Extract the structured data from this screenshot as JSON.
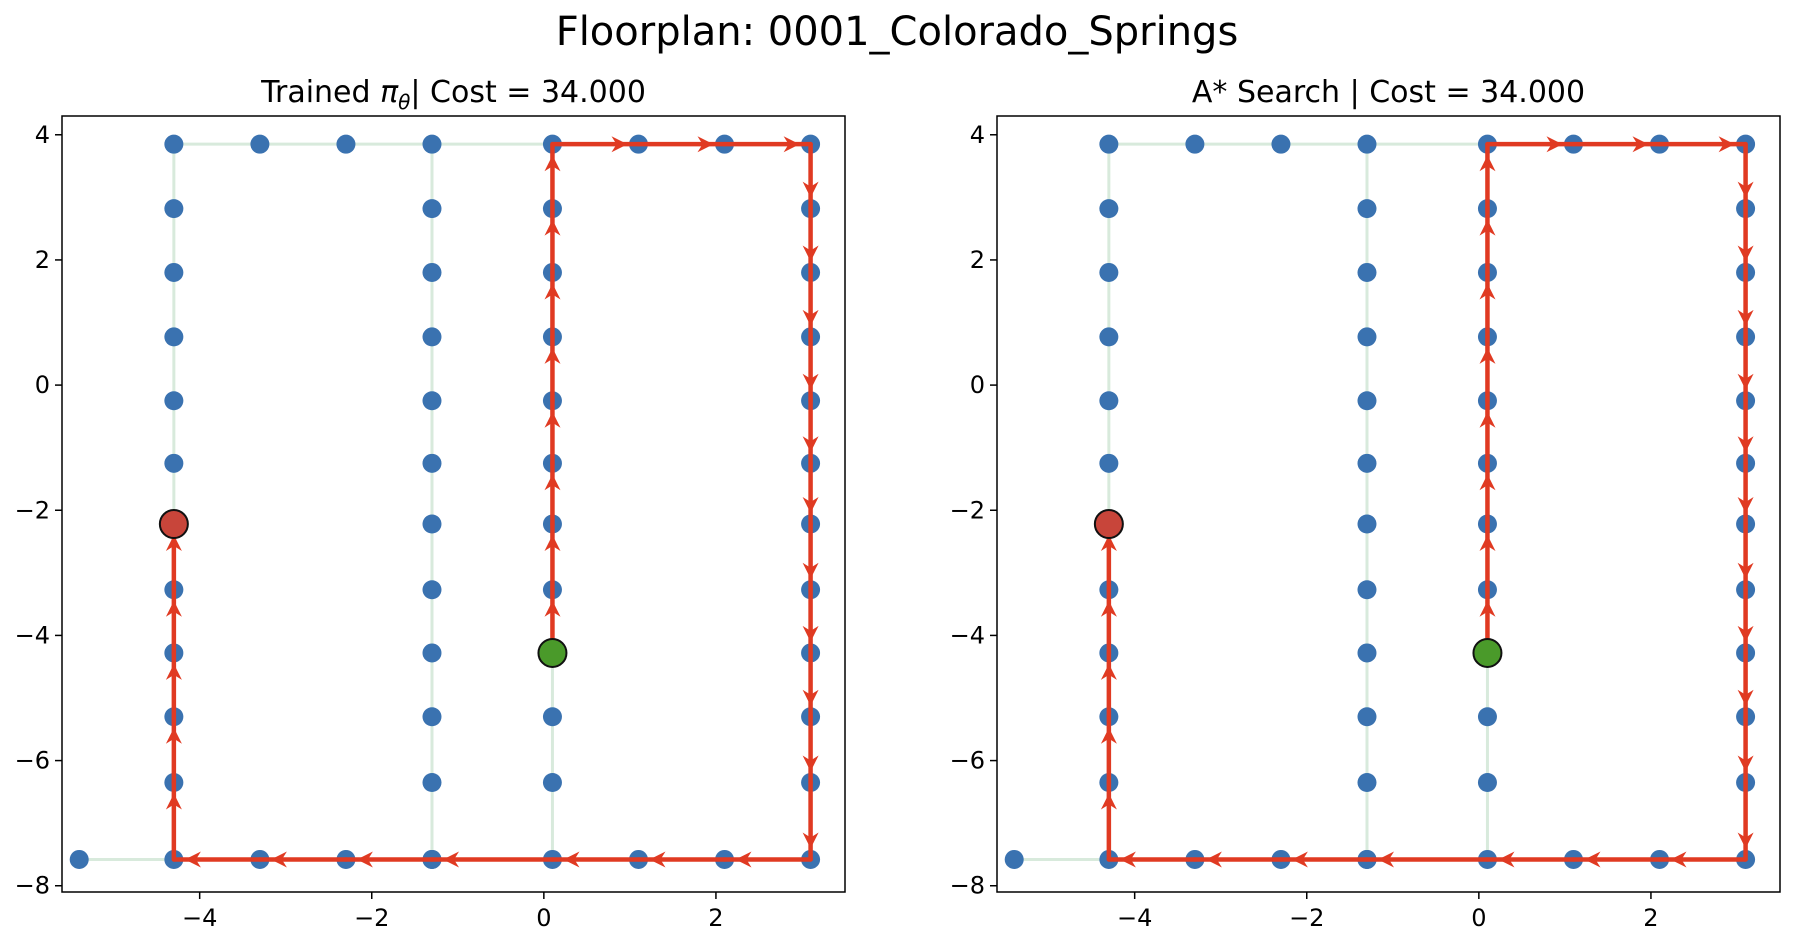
{
  "suptitle": "Floorplan: 0001_Colorado_Springs",
  "colors": {
    "node": "#3a72b0",
    "edge": "#d8eadc",
    "path": "#e03a22",
    "start": "#4a9a2a",
    "goal": "#c8453a"
  },
  "chart_data": [
    {
      "type": "scatter",
      "title_prefix": "Trained ",
      "title_symbol": "π",
      "title_subscript": "θ",
      "title_suffix": "| Cost = 34.000",
      "xlim": [
        -5.6,
        3.5
      ],
      "ylim": [
        -8.1,
        4.3
      ],
      "xticks": [
        -4,
        -2,
        0,
        2
      ],
      "xtick_labels": [
        "−4",
        "−2",
        "0",
        "2"
      ],
      "yticks": [
        4,
        2,
        0,
        -2,
        -4,
        -6,
        -8
      ],
      "ytick_labels": [
        "4",
        "2",
        "0",
        "−2",
        "−4",
        "−6",
        "−8"
      ],
      "grid": false,
      "nodes": [
        [
          -4.3,
          3.85
        ],
        [
          -3.3,
          3.85
        ],
        [
          -2.3,
          3.85
        ],
        [
          -1.3,
          3.85
        ],
        [
          0.1,
          3.85
        ],
        [
          1.1,
          3.85
        ],
        [
          2.1,
          3.85
        ],
        [
          3.1,
          3.85
        ],
        [
          -4.3,
          2.82
        ],
        [
          -4.3,
          1.8
        ],
        [
          -4.3,
          0.77
        ],
        [
          -4.3,
          -0.25
        ],
        [
          -4.3,
          -1.25
        ],
        [
          -4.3,
          -2.22
        ],
        [
          -4.3,
          -3.27
        ],
        [
          -4.3,
          -4.28
        ],
        [
          -4.3,
          -5.3
        ],
        [
          -4.3,
          -6.35
        ],
        [
          -4.3,
          -7.58
        ],
        [
          -1.3,
          2.82
        ],
        [
          -1.3,
          1.8
        ],
        [
          -1.3,
          0.77
        ],
        [
          -1.3,
          -0.25
        ],
        [
          -1.3,
          -1.25
        ],
        [
          -1.3,
          -2.22
        ],
        [
          -1.3,
          -3.27
        ],
        [
          -1.3,
          -4.28
        ],
        [
          -1.3,
          -5.3
        ],
        [
          -1.3,
          -6.35
        ],
        [
          -1.3,
          -7.58
        ],
        [
          0.1,
          2.82
        ],
        [
          0.1,
          1.8
        ],
        [
          0.1,
          0.77
        ],
        [
          0.1,
          -0.25
        ],
        [
          0.1,
          -1.25
        ],
        [
          0.1,
          -2.22
        ],
        [
          0.1,
          -3.27
        ],
        [
          0.1,
          -4.28
        ],
        [
          0.1,
          -5.3
        ],
        [
          0.1,
          -6.35
        ],
        [
          0.1,
          -7.58
        ],
        [
          3.1,
          2.82
        ],
        [
          3.1,
          1.8
        ],
        [
          3.1,
          0.77
        ],
        [
          3.1,
          -0.25
        ],
        [
          3.1,
          -1.25
        ],
        [
          3.1,
          -2.22
        ],
        [
          3.1,
          -3.27
        ],
        [
          3.1,
          -4.28
        ],
        [
          3.1,
          -5.3
        ],
        [
          3.1,
          -6.35
        ],
        [
          3.1,
          -7.58
        ],
        [
          -5.4,
          -7.58
        ],
        [
          -3.3,
          -7.58
        ],
        [
          -2.3,
          -7.58
        ],
        [
          -1.3,
          -7.58
        ],
        [
          1.1,
          -7.58
        ],
        [
          2.1,
          -7.58
        ]
      ],
      "edges": [
        [
          [
            -4.3,
            3.85
          ],
          [
            3.1,
            3.85
          ]
        ],
        [
          [
            -4.3,
            3.85
          ],
          [
            -4.3,
            -7.58
          ]
        ],
        [
          [
            -1.3,
            3.85
          ],
          [
            -1.3,
            -7.58
          ]
        ],
        [
          [
            0.1,
            3.85
          ],
          [
            0.1,
            -7.58
          ]
        ],
        [
          [
            3.1,
            3.85
          ],
          [
            3.1,
            -7.58
          ]
        ],
        [
          [
            -5.4,
            -7.58
          ],
          [
            3.1,
            -7.58
          ]
        ]
      ],
      "path": [
        [
          0.1,
          -4.28
        ],
        [
          0.1,
          -3.27
        ],
        [
          0.1,
          -2.22
        ],
        [
          0.1,
          -1.25
        ],
        [
          0.1,
          -0.25
        ],
        [
          0.1,
          0.77
        ],
        [
          0.1,
          1.8
        ],
        [
          0.1,
          2.82
        ],
        [
          0.1,
          3.85
        ],
        [
          1.1,
          3.85
        ],
        [
          2.1,
          3.85
        ],
        [
          3.1,
          3.85
        ],
        [
          3.1,
          2.82
        ],
        [
          3.1,
          1.8
        ],
        [
          3.1,
          0.77
        ],
        [
          3.1,
          -0.25
        ],
        [
          3.1,
          -1.25
        ],
        [
          3.1,
          -2.22
        ],
        [
          3.1,
          -3.27
        ],
        [
          3.1,
          -4.28
        ],
        [
          3.1,
          -5.3
        ],
        [
          3.1,
          -6.35
        ],
        [
          3.1,
          -7.58
        ],
        [
          2.1,
          -7.58
        ],
        [
          1.1,
          -7.58
        ],
        [
          0.1,
          -7.58
        ],
        [
          -1.3,
          -7.58
        ],
        [
          -2.3,
          -7.58
        ],
        [
          -3.3,
          -7.58
        ],
        [
          -4.3,
          -7.58
        ],
        [
          -4.3,
          -6.35
        ],
        [
          -4.3,
          -5.3
        ],
        [
          -4.3,
          -4.28
        ],
        [
          -4.3,
          -3.27
        ],
        [
          -4.3,
          -2.22
        ]
      ],
      "start": [
        0.1,
        -4.28
      ],
      "goal": [
        -4.3,
        -2.22
      ]
    },
    {
      "type": "scatter",
      "title_prefix": "A* Search | Cost = 34.000",
      "title_symbol": "",
      "title_subscript": "",
      "title_suffix": "",
      "xlim": [
        -5.6,
        3.5
      ],
      "ylim": [
        -8.1,
        4.3
      ],
      "xticks": [
        -4,
        -2,
        0,
        2
      ],
      "xtick_labels": [
        "−4",
        "−2",
        "0",
        "2"
      ],
      "yticks": [
        4,
        2,
        0,
        -2,
        -4,
        -6,
        -8
      ],
      "ytick_labels": [
        "4",
        "2",
        "0",
        "−2",
        "−4",
        "−6",
        "−8"
      ],
      "grid": false,
      "nodes": [
        [
          -4.3,
          3.85
        ],
        [
          -3.3,
          3.85
        ],
        [
          -2.3,
          3.85
        ],
        [
          -1.3,
          3.85
        ],
        [
          0.1,
          3.85
        ],
        [
          1.1,
          3.85
        ],
        [
          2.1,
          3.85
        ],
        [
          3.1,
          3.85
        ],
        [
          -4.3,
          2.82
        ],
        [
          -4.3,
          1.8
        ],
        [
          -4.3,
          0.77
        ],
        [
          -4.3,
          -0.25
        ],
        [
          -4.3,
          -1.25
        ],
        [
          -4.3,
          -2.22
        ],
        [
          -4.3,
          -3.27
        ],
        [
          -4.3,
          -4.28
        ],
        [
          -4.3,
          -5.3
        ],
        [
          -4.3,
          -6.35
        ],
        [
          -4.3,
          -7.58
        ],
        [
          -1.3,
          2.82
        ],
        [
          -1.3,
          1.8
        ],
        [
          -1.3,
          0.77
        ],
        [
          -1.3,
          -0.25
        ],
        [
          -1.3,
          -1.25
        ],
        [
          -1.3,
          -2.22
        ],
        [
          -1.3,
          -3.27
        ],
        [
          -1.3,
          -4.28
        ],
        [
          -1.3,
          -5.3
        ],
        [
          -1.3,
          -6.35
        ],
        [
          -1.3,
          -7.58
        ],
        [
          0.1,
          2.82
        ],
        [
          0.1,
          1.8
        ],
        [
          0.1,
          0.77
        ],
        [
          0.1,
          -0.25
        ],
        [
          0.1,
          -1.25
        ],
        [
          0.1,
          -2.22
        ],
        [
          0.1,
          -3.27
        ],
        [
          0.1,
          -4.28
        ],
        [
          0.1,
          -5.3
        ],
        [
          0.1,
          -6.35
        ],
        [
          0.1,
          -7.58
        ],
        [
          3.1,
          2.82
        ],
        [
          3.1,
          1.8
        ],
        [
          3.1,
          0.77
        ],
        [
          3.1,
          -0.25
        ],
        [
          3.1,
          -1.25
        ],
        [
          3.1,
          -2.22
        ],
        [
          3.1,
          -3.27
        ],
        [
          3.1,
          -4.28
        ],
        [
          3.1,
          -5.3
        ],
        [
          3.1,
          -6.35
        ],
        [
          3.1,
          -7.58
        ],
        [
          -5.4,
          -7.58
        ],
        [
          -3.3,
          -7.58
        ],
        [
          -2.3,
          -7.58
        ],
        [
          -1.3,
          -7.58
        ],
        [
          1.1,
          -7.58
        ],
        [
          2.1,
          -7.58
        ]
      ],
      "edges": [
        [
          [
            -4.3,
            3.85
          ],
          [
            3.1,
            3.85
          ]
        ],
        [
          [
            -4.3,
            3.85
          ],
          [
            -4.3,
            -7.58
          ]
        ],
        [
          [
            -1.3,
            3.85
          ],
          [
            -1.3,
            -7.58
          ]
        ],
        [
          [
            0.1,
            3.85
          ],
          [
            0.1,
            -7.58
          ]
        ],
        [
          [
            3.1,
            3.85
          ],
          [
            3.1,
            -7.58
          ]
        ],
        [
          [
            -5.4,
            -7.58
          ],
          [
            3.1,
            -7.58
          ]
        ]
      ],
      "path": [
        [
          0.1,
          -4.28
        ],
        [
          0.1,
          -3.27
        ],
        [
          0.1,
          -2.22
        ],
        [
          0.1,
          -1.25
        ],
        [
          0.1,
          -0.25
        ],
        [
          0.1,
          0.77
        ],
        [
          0.1,
          1.8
        ],
        [
          0.1,
          2.82
        ],
        [
          0.1,
          3.85
        ],
        [
          1.1,
          3.85
        ],
        [
          2.1,
          3.85
        ],
        [
          3.1,
          3.85
        ],
        [
          3.1,
          2.82
        ],
        [
          3.1,
          1.8
        ],
        [
          3.1,
          0.77
        ],
        [
          3.1,
          -0.25
        ],
        [
          3.1,
          -1.25
        ],
        [
          3.1,
          -2.22
        ],
        [
          3.1,
          -3.27
        ],
        [
          3.1,
          -4.28
        ],
        [
          3.1,
          -5.3
        ],
        [
          3.1,
          -6.35
        ],
        [
          3.1,
          -7.58
        ],
        [
          2.1,
          -7.58
        ],
        [
          1.1,
          -7.58
        ],
        [
          0.1,
          -7.58
        ],
        [
          -1.3,
          -7.58
        ],
        [
          -2.3,
          -7.58
        ],
        [
          -3.3,
          -7.58
        ],
        [
          -4.3,
          -7.58
        ],
        [
          -4.3,
          -6.35
        ],
        [
          -4.3,
          -5.3
        ],
        [
          -4.3,
          -4.28
        ],
        [
          -4.3,
          -3.27
        ],
        [
          -4.3,
          -2.22
        ]
      ],
      "start": [
        0.1,
        -4.28
      ],
      "goal": [
        -4.3,
        -2.22
      ]
    }
  ]
}
